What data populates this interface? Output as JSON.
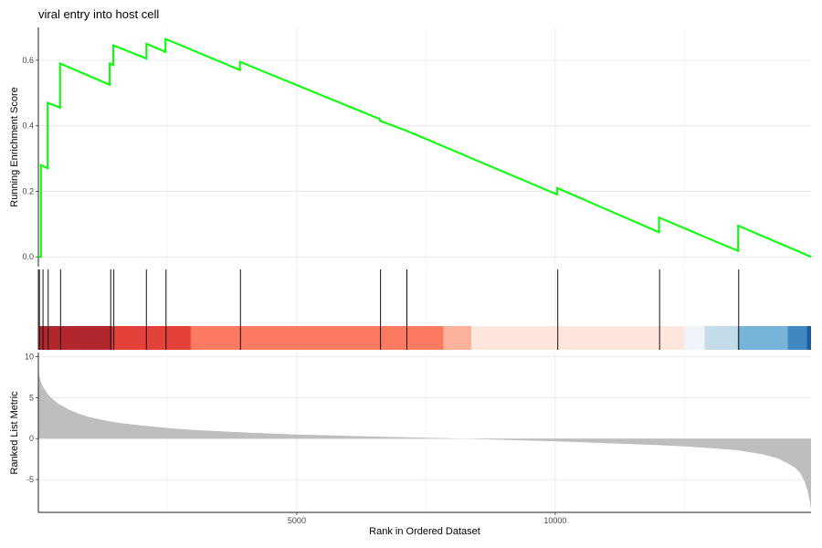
{
  "chart_data": {
    "type": "line",
    "title": "viral entry into host cell",
    "xlabel": "Rank in Ordered Dataset",
    "xlim": [
      0,
      14950
    ],
    "x_ticks": [
      5000,
      10000
    ],
    "panels": [
      {
        "id": "running-es",
        "ylabel": "Running Enrichment Score",
        "ylim": [
          -0.03,
          0.7
        ],
        "y_ticks": [
          0.0,
          0.2,
          0.4,
          0.6
        ],
        "series": [
          {
            "color": "#00ff00",
            "points": [
              [
                0,
                0
              ],
              [
                50,
                0
              ],
              [
                50,
                0.28
              ],
              [
                180,
                0.27
              ],
              [
                180,
                0.47
              ],
              [
                420,
                0.455
              ],
              [
                420,
                0.59
              ],
              [
                1380,
                0.525
              ],
              [
                1380,
                0.59
              ],
              [
                1450,
                0.585
              ],
              [
                1450,
                0.645
              ],
              [
                2090,
                0.605
              ],
              [
                2090,
                0.65
              ],
              [
                2460,
                0.625
              ],
              [
                2460,
                0.665
              ],
              [
                3900,
                0.57
              ],
              [
                3900,
                0.595
              ],
              [
                6610,
                0.42
              ],
              [
                6610,
                0.415
              ],
              [
                7120,
                0.385
              ],
              [
                10040,
                0.19
              ],
              [
                10040,
                0.21
              ],
              [
                12010,
                0.075
              ],
              [
                12010,
                0.12
              ],
              [
                13540,
                0.018
              ],
              [
                13540,
                0.095
              ],
              [
                14950,
                0.0
              ]
            ]
          }
        ]
      },
      {
        "id": "hits",
        "hit_ranks": [
          20,
          90,
          190,
          430,
          1400,
          1460,
          2090,
          2470,
          3910,
          6620,
          7130,
          10050,
          12020,
          13550
        ]
      },
      {
        "id": "heat-strip",
        "segments": [
          {
            "from": 0,
            "to": 1430,
            "color": "#b2272d"
          },
          {
            "from": 1430,
            "to": 2950,
            "color": "#e34139"
          },
          {
            "from": 2950,
            "to": 7840,
            "color": "#fc7b60"
          },
          {
            "from": 7840,
            "to": 8380,
            "color": "#fcb19a"
          },
          {
            "from": 8380,
            "to": 12500,
            "color": "#fee6dd"
          },
          {
            "from": 12500,
            "to": 12890,
            "color": "#eff3fa"
          },
          {
            "from": 12890,
            "to": 13530,
            "color": "#c4dbe9"
          },
          {
            "from": 13530,
            "to": 14500,
            "color": "#78b3d8"
          },
          {
            "from": 14500,
            "to": 14870,
            "color": "#3f88c1"
          },
          {
            "from": 14870,
            "to": 14950,
            "color": "#1e5aa0"
          }
        ]
      },
      {
        "id": "ranked-metric",
        "ylabel": "Ranked List Metric",
        "ylim": [
          -9,
          10.5
        ],
        "y_ticks": [
          10,
          5,
          0,
          -5
        ],
        "fill_color": "#bebebe",
        "points": [
          [
            0,
            8.8
          ],
          [
            15,
            7.7
          ],
          [
            50,
            6.9
          ],
          [
            100,
            6.2
          ],
          [
            200,
            5.3
          ],
          [
            300,
            4.7
          ],
          [
            400,
            4.2
          ],
          [
            600,
            3.5
          ],
          [
            800,
            3.0
          ],
          [
            1000,
            2.6
          ],
          [
            1300,
            2.2
          ],
          [
            1600,
            1.9
          ],
          [
            2000,
            1.6
          ],
          [
            2500,
            1.3
          ],
          [
            3000,
            1.05
          ],
          [
            4000,
            0.75
          ],
          [
            5000,
            0.5
          ],
          [
            6000,
            0.33
          ],
          [
            7000,
            0.18
          ],
          [
            7900,
            0.05
          ],
          [
            8200,
            0
          ],
          [
            9000,
            -0.15
          ],
          [
            10000,
            -0.32
          ],
          [
            11000,
            -0.55
          ],
          [
            12000,
            -0.8
          ],
          [
            12500,
            -0.95
          ],
          [
            13000,
            -1.15
          ],
          [
            13500,
            -1.4
          ],
          [
            14000,
            -1.9
          ],
          [
            14300,
            -2.4
          ],
          [
            14500,
            -3.0
          ],
          [
            14650,
            -3.6
          ],
          [
            14750,
            -4.3
          ],
          [
            14830,
            -5.3
          ],
          [
            14880,
            -6.3
          ],
          [
            14920,
            -7.5
          ],
          [
            14950,
            -8.6
          ]
        ]
      }
    ]
  }
}
